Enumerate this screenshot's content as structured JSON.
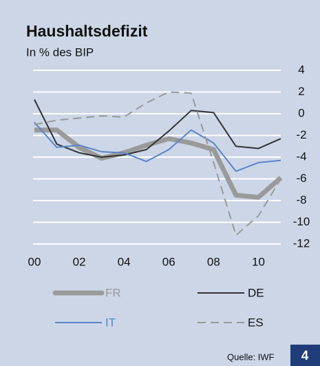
{
  "chart_data": {
    "type": "line",
    "title": "Haushaltsdefizit",
    "subtitle": "In % des BIP",
    "x": [
      0,
      1,
      2,
      3,
      4,
      5,
      6,
      7,
      8,
      9,
      10,
      11
    ],
    "xlim": [
      0,
      11
    ],
    "xticks": [
      {
        "value": 0,
        "label": "00"
      },
      {
        "value": 2,
        "label": "02"
      },
      {
        "value": 4,
        "label": "04"
      },
      {
        "value": 6,
        "label": "06"
      },
      {
        "value": 8,
        "label": "08"
      },
      {
        "value": 10,
        "label": "10"
      }
    ],
    "ylim": [
      -12,
      4
    ],
    "yticks": [
      4,
      2,
      0,
      -2,
      -4,
      -6,
      -8,
      -10,
      -12
    ],
    "grid": true,
    "series": [
      {
        "name": "FR",
        "color": "#9a9a9a",
        "width": 7,
        "dashed": false,
        "values": [
          -1.5,
          -1.5,
          -3.1,
          -4.1,
          -3.6,
          -2.9,
          -2.3,
          -2.7,
          -3.3,
          -7.5,
          -7.7,
          -5.9
        ]
      },
      {
        "name": "DE",
        "color": "#333333",
        "width": 2,
        "dashed": false,
        "values": [
          1.3,
          -2.8,
          -3.6,
          -4.0,
          -3.8,
          -3.3,
          -1.6,
          0.3,
          0.1,
          -3.0,
          -3.2,
          -2.3
        ]
      },
      {
        "name": "IT",
        "color": "#5b84c8",
        "width": 2,
        "dashed": false,
        "values": [
          -0.8,
          -3.1,
          -2.9,
          -3.5,
          -3.6,
          -4.4,
          -3.3,
          -1.5,
          -2.7,
          -5.3,
          -4.5,
          -4.3
        ]
      },
      {
        "name": "ES",
        "color": "#999999",
        "width": 2,
        "dashed": true,
        "values": [
          -1.0,
          -0.6,
          -0.4,
          -0.2,
          -0.3,
          1.0,
          2.0,
          1.9,
          -4.5,
          -11.2,
          -9.4,
          -6.0
        ]
      }
    ],
    "source": "Quelle: IWF",
    "page_number": "4"
  }
}
